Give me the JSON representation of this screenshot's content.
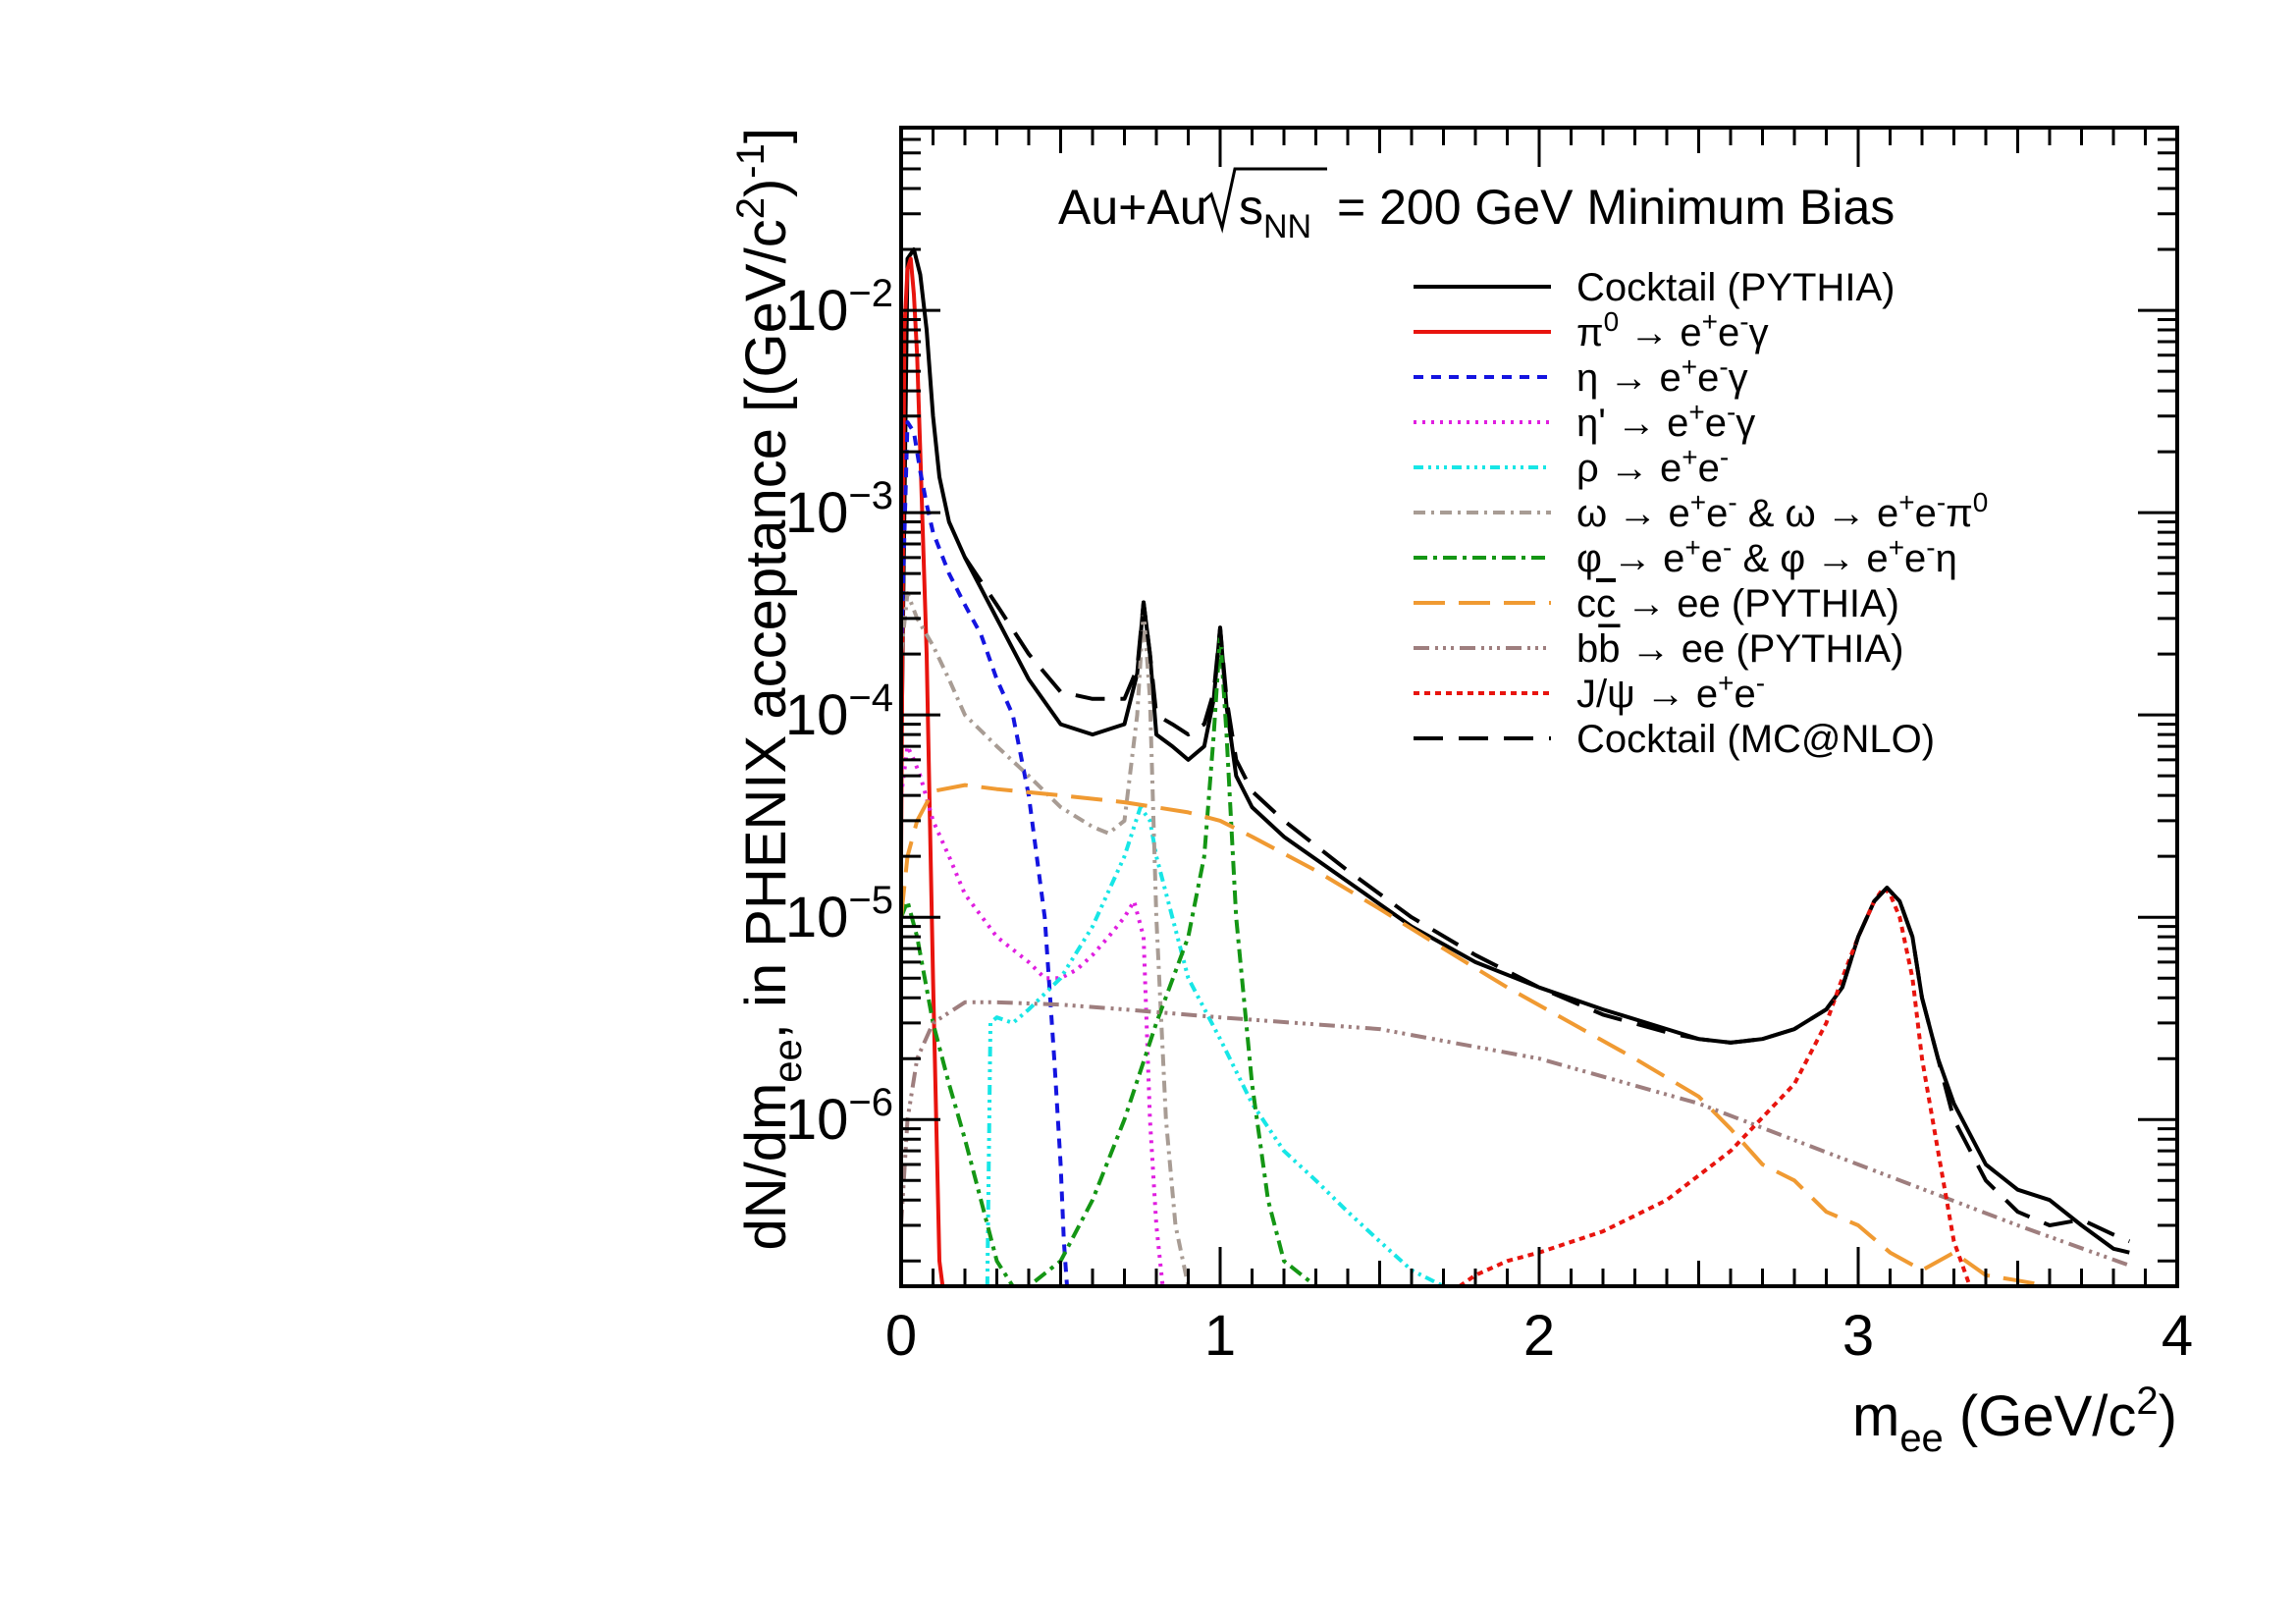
{
  "chart_data": {
    "type": "line",
    "title": "Au+Au √s_NN = 200 GeV Minimum Bias",
    "header": {
      "prefix": "Au+Au",
      "sqrt_label": "s",
      "sqrt_sub": "NN",
      "suffix": "= 200 GeV Minimum Bias"
    },
    "xlabel": {
      "main": "m",
      "sub": "ee",
      "rest": " (GeV/c",
      "sup": "2",
      "end": ")"
    },
    "ylabel": "dN/dm_ee, in PHENIX acceptance [(GeV/c²)⁻¹]",
    "ylabel_parts": {
      "a": "dN/dm",
      "b": "ee",
      "c": ", in PHENIX acceptance [(GeV/c",
      "d": "2",
      "e": ")",
      "f": "-1",
      "g": "]"
    },
    "xlim": [
      0,
      4
    ],
    "ylim": [
      1.5e-07,
      0.08
    ],
    "yscale": "log",
    "grid": false,
    "legend_position": "top-right",
    "x_ticks": [
      {
        "v": 0,
        "label": "0"
      },
      {
        "v": 1,
        "label": "1"
      },
      {
        "v": 2,
        "label": "2"
      },
      {
        "v": 3,
        "label": "3"
      },
      {
        "v": 4,
        "label": "4"
      }
    ],
    "y_ticks": [
      {
        "v": 1e-06,
        "base": "10",
        "exp": "−6"
      },
      {
        "v": 1e-05,
        "base": "10",
        "exp": "−5"
      },
      {
        "v": 0.0001,
        "base": "10",
        "exp": "−4"
      },
      {
        "v": 0.001,
        "base": "10",
        "exp": "−3"
      },
      {
        "v": 0.01,
        "base": "10",
        "exp": "−2"
      }
    ],
    "series": [
      {
        "name": "Cocktail (PYTHIA)",
        "legend": [
          {
            "t": "Cocktail (PYTHIA)"
          }
        ],
        "color": "#000000",
        "dash": "",
        "width": 4,
        "x": [
          0.0,
          0.02,
          0.04,
          0.06,
          0.08,
          0.1,
          0.12,
          0.15,
          0.2,
          0.3,
          0.4,
          0.5,
          0.6,
          0.7,
          0.74,
          0.76,
          0.78,
          0.8,
          0.85,
          0.9,
          0.95,
          0.98,
          1.0,
          1.02,
          1.05,
          1.1,
          1.2,
          1.4,
          1.6,
          1.8,
          2.0,
          2.2,
          2.4,
          2.5,
          2.6,
          2.7,
          2.8,
          2.9,
          2.95,
          3.0,
          3.05,
          3.09,
          3.13,
          3.17,
          3.2,
          3.25,
          3.3,
          3.4,
          3.5,
          3.6,
          3.7,
          3.8,
          3.85
        ],
        "y": [
          5e-05,
          0.018,
          0.02,
          0.015,
          0.008,
          0.003,
          0.0015,
          0.0009,
          0.0006,
          0.0003,
          0.00015,
          9e-05,
          8e-05,
          9e-05,
          0.00016,
          0.00036,
          0.0002,
          8e-05,
          7e-05,
          6e-05,
          7e-05,
          0.00012,
          0.00027,
          0.00011,
          5e-05,
          3.5e-05,
          2.5e-05,
          1.5e-05,
          9e-06,
          6e-06,
          4.5e-06,
          3.5e-06,
          2.8e-06,
          2.5e-06,
          2.4e-06,
          2.5e-06,
          2.8e-06,
          3.5e-06,
          4.5e-06,
          8e-06,
          1.2e-05,
          1.4e-05,
          1.2e-05,
          8e-06,
          4e-06,
          2e-06,
          1.2e-06,
          6e-07,
          4.5e-07,
          4e-07,
          3e-07,
          2.3e-07,
          2.2e-07
        ]
      },
      {
        "name": "π0 → e+e-γ",
        "legend": [
          {
            "t": "π"
          },
          {
            "t": "0",
            "s": "sup"
          },
          {
            "t": " → e"
          },
          {
            "t": "+",
            "s": "sup"
          },
          {
            "t": "e"
          },
          {
            "t": "-",
            "s": "sup"
          },
          {
            "t": "γ"
          }
        ],
        "color": "#e8140e",
        "dash": "",
        "width": 4,
        "x": [
          0.0,
          0.01,
          0.02,
          0.03,
          0.04,
          0.05,
          0.06,
          0.08,
          0.1,
          0.12,
          0.13
        ],
        "y": [
          2e-05,
          0.008,
          0.016,
          0.018,
          0.012,
          0.006,
          0.002,
          0.0002,
          5e-06,
          2e-07,
          1.5e-07
        ]
      },
      {
        "name": "η → e+e-γ",
        "legend": [
          {
            "t": "η → e"
          },
          {
            "t": "+",
            "s": "sup"
          },
          {
            "t": "e"
          },
          {
            "t": "-",
            "s": "sup"
          },
          {
            "t": "γ"
          }
        ],
        "color": "#1414e0",
        "dash": "10,8",
        "width": 4,
        "x": [
          0.0,
          0.02,
          0.04,
          0.06,
          0.08,
          0.1,
          0.15,
          0.2,
          0.25,
          0.3,
          0.35,
          0.4,
          0.45,
          0.48,
          0.5,
          0.51,
          0.52
        ],
        "y": [
          0.0002,
          0.0028,
          0.0025,
          0.0016,
          0.0011,
          0.0008,
          0.0005,
          0.00035,
          0.00025,
          0.00015,
          0.0001,
          4e-05,
          1e-05,
          2e-06,
          6e-07,
          2.5e-07,
          1.5e-07
        ]
      },
      {
        "name": "η' → e+e-γ",
        "legend": [
          {
            "t": "η' → e"
          },
          {
            "t": "+",
            "s": "sup"
          },
          {
            "t": "e"
          },
          {
            "t": "-",
            "s": "sup"
          },
          {
            "t": "γ"
          }
        ],
        "color": "#e01ee0",
        "dash": "3,6",
        "width": 4,
        "x": [
          0.0,
          0.02,
          0.04,
          0.06,
          0.1,
          0.15,
          0.2,
          0.3,
          0.4,
          0.45,
          0.5,
          0.55,
          0.6,
          0.65,
          0.7,
          0.73,
          0.76,
          0.78,
          0.8,
          0.82
        ],
        "y": [
          4e-05,
          7e-05,
          6e-05,
          5e-05,
          3e-05,
          2e-05,
          1.3e-05,
          8e-06,
          6e-06,
          5e-06,
          5e-06,
          5.5e-06,
          6.5e-06,
          8e-06,
          1e-05,
          1.2e-05,
          8e-06,
          1e-06,
          3e-07,
          1.5e-07
        ]
      },
      {
        "name": "ρ → e+e-",
        "legend": [
          {
            "t": "ρ → e"
          },
          {
            "t": "+",
            "s": "sup"
          },
          {
            "t": "e"
          },
          {
            "t": "-",
            "s": "sup"
          }
        ],
        "color": "#17e6e6",
        "dash": "10,5,3,5,3,5,3,5",
        "width": 4,
        "x": [
          0.27,
          0.28,
          0.3,
          0.35,
          0.4,
          0.5,
          0.6,
          0.7,
          0.75,
          0.78,
          0.8,
          0.85,
          0.9,
          1.0,
          1.1,
          1.2,
          1.3,
          1.4,
          1.5,
          1.6,
          1.7
        ],
        "y": [
          1.5e-07,
          3e-06,
          3.2e-06,
          3e-06,
          3.5e-06,
          5e-06,
          9e-06,
          2e-05,
          3.5e-05,
          3e-05,
          2e-05,
          1e-05,
          5e-06,
          2.5e-06,
          1.2e-06,
          7e-07,
          5e-07,
          3.5e-07,
          2.5e-07,
          1.8e-07,
          1.5e-07
        ]
      },
      {
        "name": "ω → e+e- & ω → e+e-π0",
        "legend": [
          {
            "t": "ω → e"
          },
          {
            "t": "+",
            "s": "sup"
          },
          {
            "t": "e"
          },
          {
            "t": "-",
            "s": "sup"
          },
          {
            "t": " & ω → e"
          },
          {
            "t": "+",
            "s": "sup"
          },
          {
            "t": "e"
          },
          {
            "t": "-",
            "s": "sup"
          },
          {
            "t": "π"
          },
          {
            "t": "0",
            "s": "sup"
          }
        ],
        "color": "#a89c94",
        "dash": "12,6,3,6",
        "width": 4,
        "x": [
          0.0,
          0.02,
          0.05,
          0.1,
          0.15,
          0.2,
          0.3,
          0.4,
          0.5,
          0.6,
          0.65,
          0.7,
          0.74,
          0.76,
          0.78,
          0.8,
          0.83,
          0.86,
          0.9
        ],
        "y": [
          0.0002,
          0.0004,
          0.0003,
          0.00022,
          0.00015,
          0.0001,
          7e-05,
          5e-05,
          3.5e-05,
          2.8e-05,
          2.6e-05,
          3e-05,
          0.0001,
          0.00033,
          0.00012,
          1e-05,
          1e-06,
          3e-07,
          1.5e-07
        ]
      },
      {
        "name": "φ → e+e- & φ → e+e-η",
        "legend": [
          {
            "t": "φ → e"
          },
          {
            "t": "+",
            "s": "sup"
          },
          {
            "t": "e"
          },
          {
            "t": "-",
            "s": "sup"
          },
          {
            "t": " & φ → e"
          },
          {
            "t": "+",
            "s": "sup"
          },
          {
            "t": "e"
          },
          {
            "t": "-",
            "s": "sup"
          },
          {
            "t": "η"
          }
        ],
        "color": "#149614",
        "dash": "14,6,4,6",
        "width": 4,
        "x": [
          0.0,
          0.02,
          0.05,
          0.1,
          0.15,
          0.2,
          0.25,
          0.3,
          0.35,
          0.4,
          0.5,
          0.6,
          0.7,
          0.8,
          0.9,
          0.95,
          0.98,
          1.0,
          1.02,
          1.05,
          1.1,
          1.15,
          1.2,
          1.3
        ],
        "y": [
          1e-05,
          1.2e-05,
          8e-06,
          3e-06,
          1.5e-06,
          8e-07,
          4e-07,
          2e-07,
          1.5e-07,
          1.5e-07,
          2e-07,
          4e-07,
          1e-06,
          3e-06,
          8e-06,
          2e-05,
          8e-05,
          0.00025,
          8e-05,
          1e-05,
          1.5e-06,
          4e-07,
          2e-07,
          1.5e-07
        ]
      },
      {
        "name": "cc̄ → ee (PYTHIA)",
        "legend": [
          {
            "t": "c"
          },
          {
            "t": "c",
            "s": "bar"
          },
          {
            "t": " → ee (PYTHIA)"
          }
        ],
        "color": "#f09a32",
        "dash": "32,14",
        "width": 4,
        "x": [
          0.0,
          0.02,
          0.05,
          0.1,
          0.2,
          0.3,
          0.5,
          0.7,
          0.9,
          1.0,
          1.1,
          1.3,
          1.5,
          1.7,
          1.9,
          2.1,
          2.3,
          2.5,
          2.6,
          2.7,
          2.8,
          2.9,
          3.0,
          3.1,
          3.2,
          3.3,
          3.4,
          3.5,
          3.6,
          3.7
        ],
        "y": [
          1e-05,
          2e-05,
          3e-05,
          4.2e-05,
          4.5e-05,
          4.3e-05,
          4e-05,
          3.7e-05,
          3.3e-05,
          3e-05,
          2.5e-05,
          1.7e-05,
          1.1e-05,
          7e-06,
          4.5e-06,
          3e-06,
          2e-06,
          1.3e-06,
          9e-07,
          6e-07,
          5e-07,
          3.5e-07,
          3e-07,
          2.2e-07,
          1.8e-07,
          2.2e-07,
          1.7e-07,
          1.6e-07,
          1.5e-07,
          1.5e-07
        ]
      },
      {
        "name": "bb̄ → ee (PYTHIA)",
        "legend": [
          {
            "t": "b"
          },
          {
            "t": "b",
            "s": "bar"
          },
          {
            "t": " → ee (PYTHIA)"
          }
        ],
        "color": "#9e7e7e",
        "dash": "16,6,3,5,3,5,3,6",
        "width": 4,
        "x": [
          0.0,
          0.02,
          0.05,
          0.1,
          0.2,
          0.3,
          0.5,
          0.7,
          1.0,
          1.5,
          2.0,
          2.5,
          3.0,
          3.5,
          3.85
        ],
        "y": [
          3e-07,
          1e-06,
          2e-06,
          3e-06,
          3.8e-06,
          3.8e-06,
          3.7e-06,
          3.5e-06,
          3.2e-06,
          2.8e-06,
          2e-06,
          1.2e-06,
          6e-07,
          3e-07,
          1.9e-07
        ]
      },
      {
        "name": "J/ψ → e+e-",
        "legend": [
          {
            "t": "J/ψ → e"
          },
          {
            "t": "+",
            "s": "sup"
          },
          {
            "t": "e"
          },
          {
            "t": "-",
            "s": "sup"
          }
        ],
        "color": "#e8140e",
        "dash": "6,5",
        "width": 4,
        "x": [
          1.75,
          1.8,
          1.9,
          2.0,
          2.2,
          2.4,
          2.6,
          2.8,
          2.9,
          2.95,
          3.0,
          3.05,
          3.08,
          3.1,
          3.13,
          3.17,
          3.2,
          3.25,
          3.3,
          3.35
        ],
        "y": [
          1.5e-07,
          1.7e-07,
          2e-07,
          2.2e-07,
          2.8e-07,
          4e-07,
          7e-07,
          1.5e-06,
          3e-06,
          5e-06,
          8e-06,
          1.2e-05,
          1.4e-05,
          1.3e-05,
          1e-05,
          5e-06,
          2e-06,
          7e-07,
          2.5e-07,
          1.5e-07
        ]
      },
      {
        "name": "Cocktail (MC@NLO)",
        "legend": [
          {
            "t": "Cocktail (MC@NLO)"
          }
        ],
        "color": "#000000",
        "dash": "30,16",
        "width": 4,
        "x": [
          0.2,
          0.3,
          0.4,
          0.5,
          0.6,
          0.7,
          0.74,
          0.76,
          0.78,
          0.8,
          0.85,
          0.9,
          0.95,
          0.98,
          1.0,
          1.02,
          1.05,
          1.1,
          1.2,
          1.4,
          1.6,
          1.8,
          2.0,
          2.2,
          2.4,
          2.5,
          2.6,
          2.7,
          2.8,
          2.9,
          2.95,
          3.0,
          3.05,
          3.09,
          3.13,
          3.17,
          3.2,
          3.25,
          3.3,
          3.4,
          3.5,
          3.6,
          3.7,
          3.8,
          3.85
        ],
        "y": [
          0.0006,
          0.00035,
          0.0002,
          0.00013,
          0.00012,
          0.00012,
          0.00017,
          0.00036,
          0.0002,
          0.0001,
          9e-05,
          8e-05,
          9e-05,
          0.00013,
          0.00027,
          0.00012,
          6e-05,
          4.2e-05,
          3e-05,
          1.7e-05,
          1e-05,
          6.5e-06,
          4.5e-06,
          3.3e-06,
          2.7e-06,
          2.5e-06,
          2.4e-06,
          2.5e-06,
          2.8e-06,
          3.5e-06,
          4.5e-06,
          8e-06,
          1.2e-05,
          1.4e-05,
          1.2e-05,
          8e-06,
          4e-06,
          2e-06,
          1e-06,
          5e-07,
          3.5e-07,
          3e-07,
          3.2e-07,
          2.7e-07,
          2.5e-07
        ]
      }
    ]
  }
}
